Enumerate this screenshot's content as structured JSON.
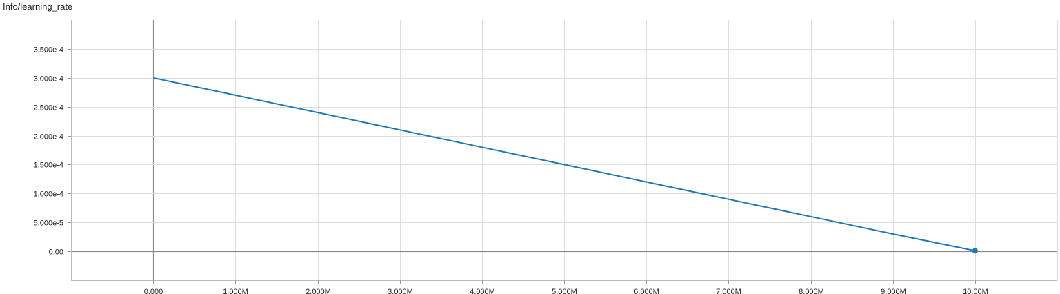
{
  "chart_data": {
    "type": "line",
    "title": "Info/learning_rate",
    "xlabel": "",
    "ylabel": "",
    "xlim": [
      -1000000,
      11000000
    ],
    "ylim": [
      -5e-05,
      0.0004
    ],
    "grid": true,
    "x_ticks": [
      0,
      1000000,
      2000000,
      3000000,
      4000000,
      5000000,
      6000000,
      7000000,
      8000000,
      9000000,
      10000000
    ],
    "x_tick_labels": [
      "0.000",
      "1.000M",
      "2.000M",
      "3.000M",
      "4.000M",
      "5.000M",
      "6.000M",
      "7.000M",
      "8.000M",
      "9.000M",
      "10.00M"
    ],
    "y_ticks": [
      0,
      5e-05,
      0.0001,
      0.00015,
      0.0002,
      0.00025,
      0.0003,
      0.00035
    ],
    "y_tick_labels": [
      "0.00",
      "5.000e-5",
      "1.000e-4",
      "1.500e-4",
      "2.000e-4",
      "2.500e-4",
      "3.000e-4",
      "3.500e-4"
    ],
    "series": [
      {
        "color": "#1f77b4",
        "x": [
          0,
          1000000,
          2000000,
          3000000,
          4000000,
          5000000,
          6000000,
          7000000,
          8000000,
          9000000,
          10000000
        ],
        "y": [
          0.0003,
          0.00027,
          0.00024,
          0.00021,
          0.00018,
          0.00015,
          0.00012,
          9e-05,
          6e-05,
          3e-05,
          1e-06
        ]
      }
    ],
    "end_marker": {
      "x": 10000000,
      "y": 1e-06
    }
  }
}
